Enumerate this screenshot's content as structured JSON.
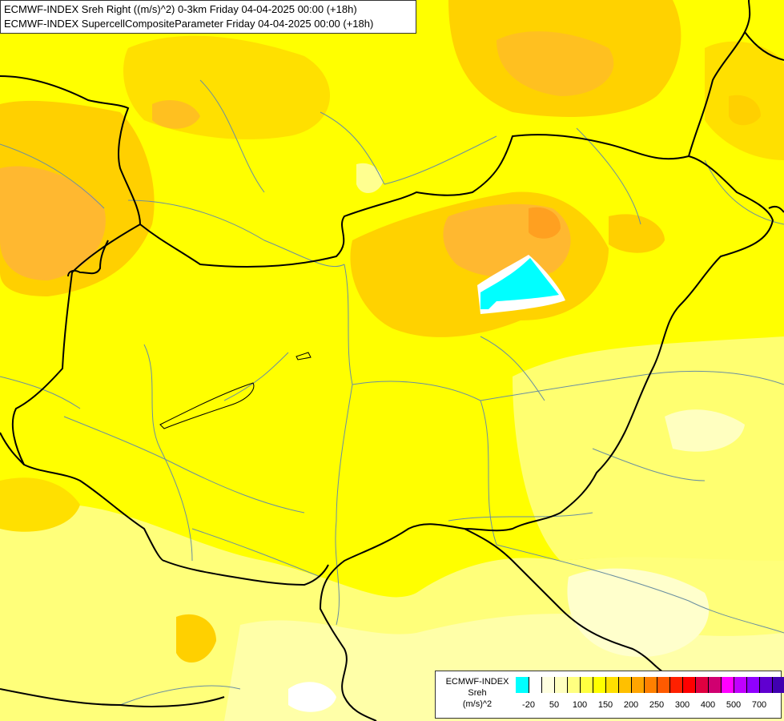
{
  "header": {
    "line1": "ECMWF-INDEX Sreh Right ((m/s)^2) 0-3km Friday 04-04-2025 00:00 (+18h)",
    "line2": "ECMWF-INDEX SupercellCompositeParameter Friday 04-04-2025 00:00 (+18h)"
  },
  "legend": {
    "title": "ECMWF-INDEX",
    "subtitle": "Sreh",
    "unit": "(m/s)^2",
    "colors": [
      "#00ffff",
      "#ffffff",
      "#ffffe0",
      "#ffffc0",
      "#ffff80",
      "#ffff40",
      "#ffff00",
      "#ffe000",
      "#ffc000",
      "#ffa500",
      "#ff8000",
      "#ff5a00",
      "#ff2000",
      "#ff0000",
      "#e00040",
      "#d00070",
      "#ff00ff",
      "#c000ff",
      "#9000ff",
      "#6000d0",
      "#4000b0",
      "#1000a0"
    ],
    "ticks": [
      "-20",
      "50",
      "100",
      "150",
      "200",
      "250",
      "300",
      "400",
      "500",
      "700"
    ]
  },
  "colors": {
    "base_yellow": "#ffff00",
    "light_yellow": "#ffff80",
    "orange_yellow": "#ffd700",
    "orange": "#ffc020",
    "cyan": "#00ffff",
    "border_country": "#000000",
    "border_region": "#6a8fa0",
    "river": "#6a8fa0"
  }
}
